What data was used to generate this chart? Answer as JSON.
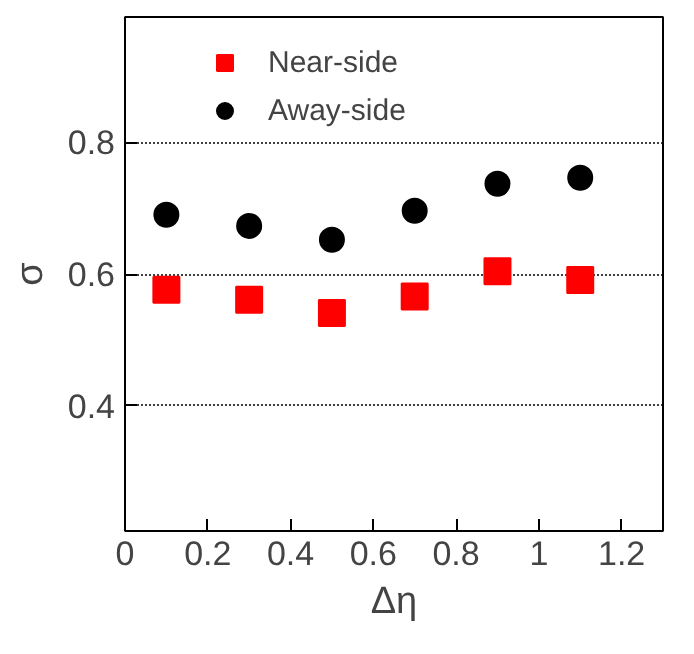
{
  "chart_data": {
    "type": "scatter",
    "xlabel": "Δη",
    "ylabel": "σ",
    "x": [
      0.1,
      0.3,
      0.5,
      0.7,
      0.9,
      1.1
    ],
    "series": [
      {
        "name": "Near-side",
        "color": "#ff0000",
        "marker": "square",
        "values": [
          0.576,
          0.561,
          0.541,
          0.566,
          0.604,
          0.591
        ]
      },
      {
        "name": "Away-side",
        "color": "#000000",
        "marker": "circle",
        "values": [
          0.69,
          0.673,
          0.652,
          0.696,
          0.737,
          0.746
        ]
      }
    ],
    "xlim": [
      0,
      1.3
    ],
    "xticks": [
      0,
      0.2,
      0.4,
      0.6,
      0.8,
      1,
      1.2
    ],
    "ylim": [
      0.21,
      0.99
    ],
    "yticks": [
      0.4,
      0.6,
      0.8
    ],
    "grid": "y",
    "legend": "top left"
  }
}
